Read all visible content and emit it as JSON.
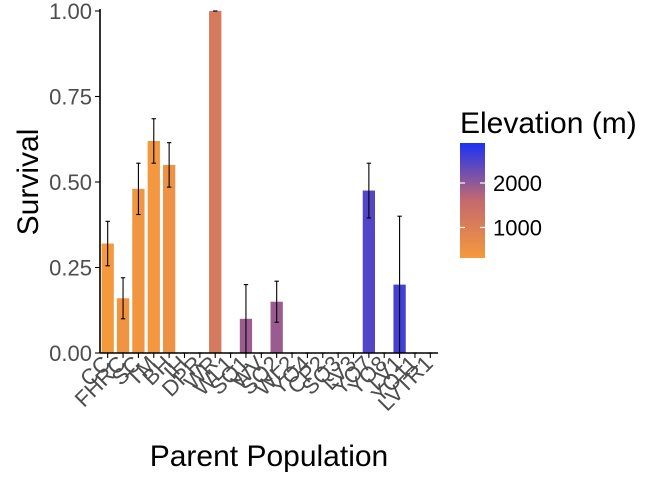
{
  "chart_data": {
    "type": "bar",
    "xlabel": "Parent Population",
    "ylabel": "Survival",
    "ylim": [
      0,
      1
    ],
    "yticks": [
      0,
      0.25,
      0.5,
      0.75,
      1
    ],
    "ytick_labels": [
      "0.00",
      "0.25",
      "0.50",
      "0.75",
      "1.00"
    ],
    "categories": [
      "CC",
      "FHRC",
      "SC",
      "TM",
      "BH",
      "IH",
      "DPR",
      "WR",
      "WL1",
      "SQ1",
      "WV",
      "SQ2",
      "WL2",
      "YO4",
      "CP2",
      "SQ3",
      "LV3",
      "YO7",
      "YO8",
      "LV1",
      "YO11",
      "LVTR1"
    ],
    "values": [
      0.32,
      0.16,
      0.48,
      0.62,
      0.55,
      0,
      0,
      1.0,
      0,
      0.1,
      0,
      0.15,
      0,
      0,
      0,
      0,
      0,
      0.475,
      0,
      0.2,
      0,
      0
    ],
    "errors": [
      0.065,
      0.06,
      0.075,
      0.065,
      0.065,
      0,
      0,
      0,
      0,
      0.1,
      0,
      0.06,
      0,
      0,
      0,
      0,
      0,
      0.08,
      0,
      0.2,
      0,
      0
    ],
    "elevation": [
      313,
      454,
      422,
      379,
      511,
      454,
      1019,
      1158,
      1614,
      1921,
      749,
      1934,
      2020,
      2470,
      2244,
      2373,
      2353,
      2470,
      2713,
      2593,
      2470,
      2593
    ],
    "legend": {
      "title": "Elevation (m)",
      "placement": "right",
      "min": 313,
      "max": 2900,
      "ticks": [
        1000,
        2000
      ],
      "tick_labels": [
        "1000",
        "2000"
      ],
      "low_color": "#F5993D",
      "mid_color": "#C5696E",
      "high_color": "#1A33F5"
    }
  }
}
